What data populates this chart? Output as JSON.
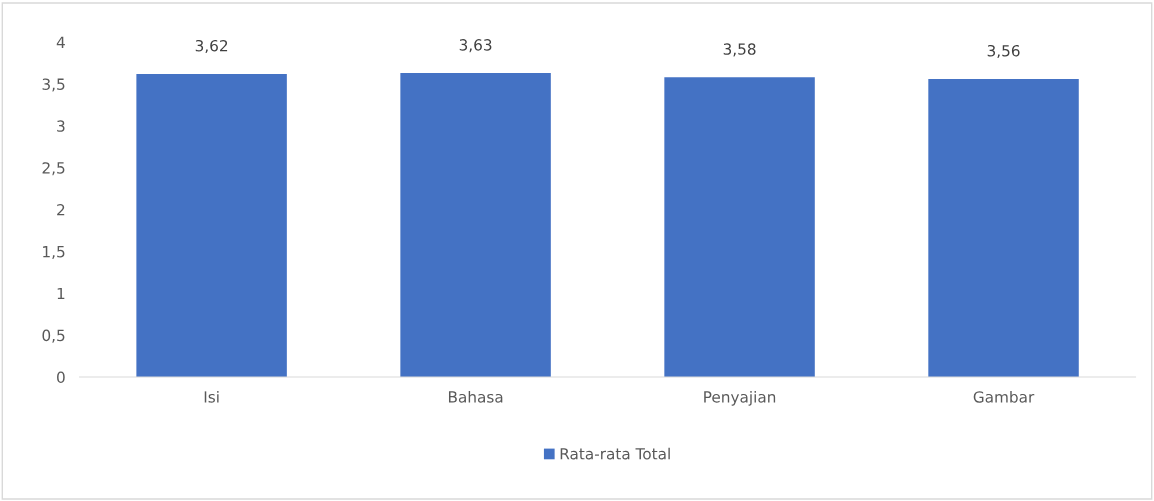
{
  "chart_data": {
    "type": "bar",
    "categories": [
      "Isi",
      "Bahasa",
      "Penyajian",
      "Gambar"
    ],
    "series": [
      {
        "name": "Rata-rata Total",
        "color": "#4472c4",
        "values": [
          3.62,
          3.63,
          3.58,
          3.56
        ],
        "value_labels": [
          "3,62",
          "3,63",
          "3,58",
          "3,56"
        ]
      }
    ],
    "ylim": [
      0,
      4
    ],
    "yticks": [
      0,
      {
        "value": 0.5,
        "label": "0,5"
      },
      1,
      {
        "value": 1.5,
        "label": "1,5"
      },
      2,
      {
        "value": 2.5,
        "label": "2,5"
      },
      3,
      {
        "value": 3.5,
        "label": "3,5"
      },
      4
    ],
    "grid": false,
    "legend": "bottom"
  }
}
